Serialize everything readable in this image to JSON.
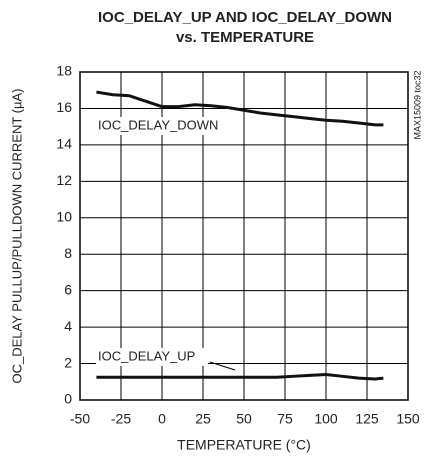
{
  "chart_data": {
    "type": "line",
    "title": [
      "IOC_DELAY_UP AND IOC_DELAY_DOWN",
      "vs. TEMPERATURE"
    ],
    "x_label": "TEMPERATURE (°C)",
    "y_label": "OC_DELAY PULLUP/PULLDOWN CURRENT (µA)",
    "side_note": "MAX15009 toc32",
    "x": [
      -40,
      -30,
      -20,
      -10,
      0,
      10,
      20,
      30,
      40,
      50,
      60,
      70,
      80,
      90,
      100,
      110,
      120,
      130,
      135
    ],
    "series": [
      {
        "name": "IOC_DELAY_DOWN",
        "color": "#111111",
        "values": [
          16.9,
          16.75,
          16.7,
          16.4,
          16.1,
          16.1,
          16.2,
          16.15,
          16.05,
          15.9,
          15.75,
          15.65,
          15.55,
          15.45,
          15.35,
          15.3,
          15.2,
          15.1,
          15.1
        ]
      },
      {
        "name": "IOC_DELAY_UP",
        "color": "#111111",
        "values": [
          1.25,
          1.25,
          1.25,
          1.25,
          1.25,
          1.25,
          1.25,
          1.25,
          1.25,
          1.25,
          1.25,
          1.25,
          1.3,
          1.35,
          1.4,
          1.3,
          1.2,
          1.15,
          1.2
        ]
      }
    ],
    "xlim": [
      -50,
      150
    ],
    "xticks": [
      -50,
      -25,
      0,
      25,
      50,
      75,
      100,
      125,
      150
    ],
    "ylim": [
      0,
      18
    ],
    "yticks": [
      0,
      2,
      4,
      6,
      8,
      10,
      12,
      14,
      16,
      18
    ],
    "grid": true
  }
}
